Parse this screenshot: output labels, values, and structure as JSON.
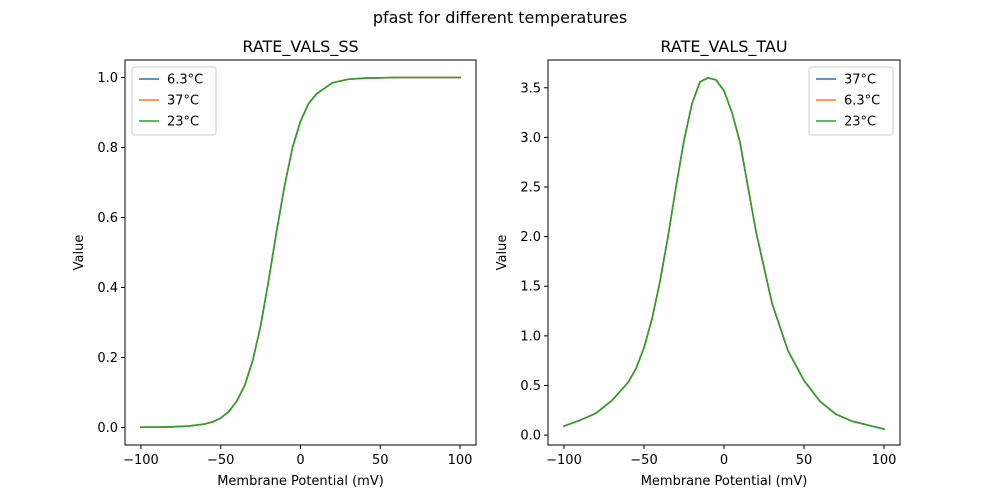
{
  "figure": {
    "title": "pfast for different temperatures"
  },
  "colors": {
    "blue": "#1f77b4",
    "orange": "#ff7f0e",
    "green": "#2ca02c"
  },
  "chart_data": [
    {
      "type": "line",
      "title": "RATE_VALS_SS",
      "xlabel": "Membrane Potential (mV)",
      "ylabel": "Value",
      "xlim": [
        -110,
        110
      ],
      "ylim": [
        -0.05,
        1.05
      ],
      "xticks": [
        -100,
        -50,
        0,
        50,
        100
      ],
      "xtick_labels": [
        "−100",
        "−50",
        "0",
        "50",
        "100"
      ],
      "yticks": [
        0.0,
        0.2,
        0.4,
        0.6,
        0.8,
        1.0
      ],
      "ytick_labels": [
        "0.0",
        "0.2",
        "0.4",
        "0.6",
        "0.8",
        "1.0"
      ],
      "legend_position": "top-left",
      "grid": false,
      "x": [
        -100,
        -90,
        -80,
        -70,
        -60,
        -55,
        -50,
        -45,
        -40,
        -35,
        -30,
        -25,
        -20,
        -15,
        -10,
        -5,
        0,
        5,
        10,
        20,
        30,
        40,
        50,
        60,
        70,
        80,
        90,
        100
      ],
      "series": [
        {
          "name": "6.3°C",
          "color": "#1f77b4",
          "values": [
            0.001,
            0.001,
            0.002,
            0.004,
            0.01,
            0.016,
            0.027,
            0.045,
            0.075,
            0.12,
            0.19,
            0.29,
            0.42,
            0.56,
            0.69,
            0.8,
            0.875,
            0.925,
            0.953,
            0.985,
            0.995,
            0.998,
            0.999,
            1.0,
            1.0,
            1.0,
            1.0,
            1.0
          ]
        },
        {
          "name": "37°C",
          "color": "#ff7f0e",
          "values": [
            0.001,
            0.001,
            0.002,
            0.004,
            0.01,
            0.016,
            0.027,
            0.045,
            0.075,
            0.12,
            0.19,
            0.29,
            0.42,
            0.56,
            0.69,
            0.8,
            0.875,
            0.925,
            0.953,
            0.985,
            0.995,
            0.998,
            0.999,
            1.0,
            1.0,
            1.0,
            1.0,
            1.0
          ]
        },
        {
          "name": "23°C",
          "color": "#2ca02c",
          "values": [
            0.001,
            0.001,
            0.002,
            0.004,
            0.01,
            0.016,
            0.027,
            0.045,
            0.075,
            0.12,
            0.19,
            0.29,
            0.42,
            0.56,
            0.69,
            0.8,
            0.875,
            0.925,
            0.953,
            0.985,
            0.995,
            0.998,
            0.999,
            1.0,
            1.0,
            1.0,
            1.0,
            1.0
          ]
        }
      ]
    },
    {
      "type": "line",
      "title": "RATE_VALS_TAU",
      "xlabel": "Membrane Potential (mV)",
      "ylabel": "Value",
      "xlim": [
        -110,
        110
      ],
      "ylim": [
        -0.1,
        3.78
      ],
      "xticks": [
        -100,
        -50,
        0,
        50,
        100
      ],
      "xtick_labels": [
        "−100",
        "−50",
        "0",
        "50",
        "100"
      ],
      "yticks": [
        0.0,
        0.5,
        1.0,
        1.5,
        2.0,
        2.5,
        3.0,
        3.5
      ],
      "ytick_labels": [
        "0.0",
        "0.5",
        "1.0",
        "1.5",
        "2.0",
        "2.5",
        "3.0",
        "3.5"
      ],
      "legend_position": "top-right",
      "grid": false,
      "x": [
        -100,
        -90,
        -80,
        -70,
        -60,
        -55,
        -50,
        -45,
        -40,
        -35,
        -30,
        -25,
        -20,
        -15,
        -10,
        -5,
        0,
        5,
        10,
        20,
        30,
        40,
        50,
        60,
        70,
        80,
        90,
        100
      ],
      "series": [
        {
          "name": "37°C",
          "color": "#1f77b4",
          "values": [
            0.09,
            0.15,
            0.22,
            0.35,
            0.53,
            0.67,
            0.88,
            1.17,
            1.55,
            2.0,
            2.5,
            2.97,
            3.34,
            3.56,
            3.6,
            3.58,
            3.47,
            3.25,
            2.95,
            2.05,
            1.33,
            0.85,
            0.55,
            0.34,
            0.21,
            0.14,
            0.1,
            0.06
          ]
        },
        {
          "name": "6.3°C",
          "color": "#ff7f0e",
          "values": [
            0.09,
            0.15,
            0.22,
            0.35,
            0.53,
            0.67,
            0.88,
            1.17,
            1.55,
            2.0,
            2.5,
            2.97,
            3.34,
            3.56,
            3.6,
            3.58,
            3.47,
            3.25,
            2.95,
            2.05,
            1.33,
            0.85,
            0.55,
            0.34,
            0.21,
            0.14,
            0.1,
            0.06
          ]
        },
        {
          "name": "23°C",
          "color": "#2ca02c",
          "values": [
            0.09,
            0.15,
            0.22,
            0.35,
            0.53,
            0.67,
            0.88,
            1.17,
            1.55,
            2.0,
            2.5,
            2.97,
            3.34,
            3.56,
            3.6,
            3.58,
            3.47,
            3.25,
            2.95,
            2.05,
            1.33,
            0.85,
            0.55,
            0.34,
            0.21,
            0.14,
            0.1,
            0.06
          ]
        }
      ]
    }
  ]
}
